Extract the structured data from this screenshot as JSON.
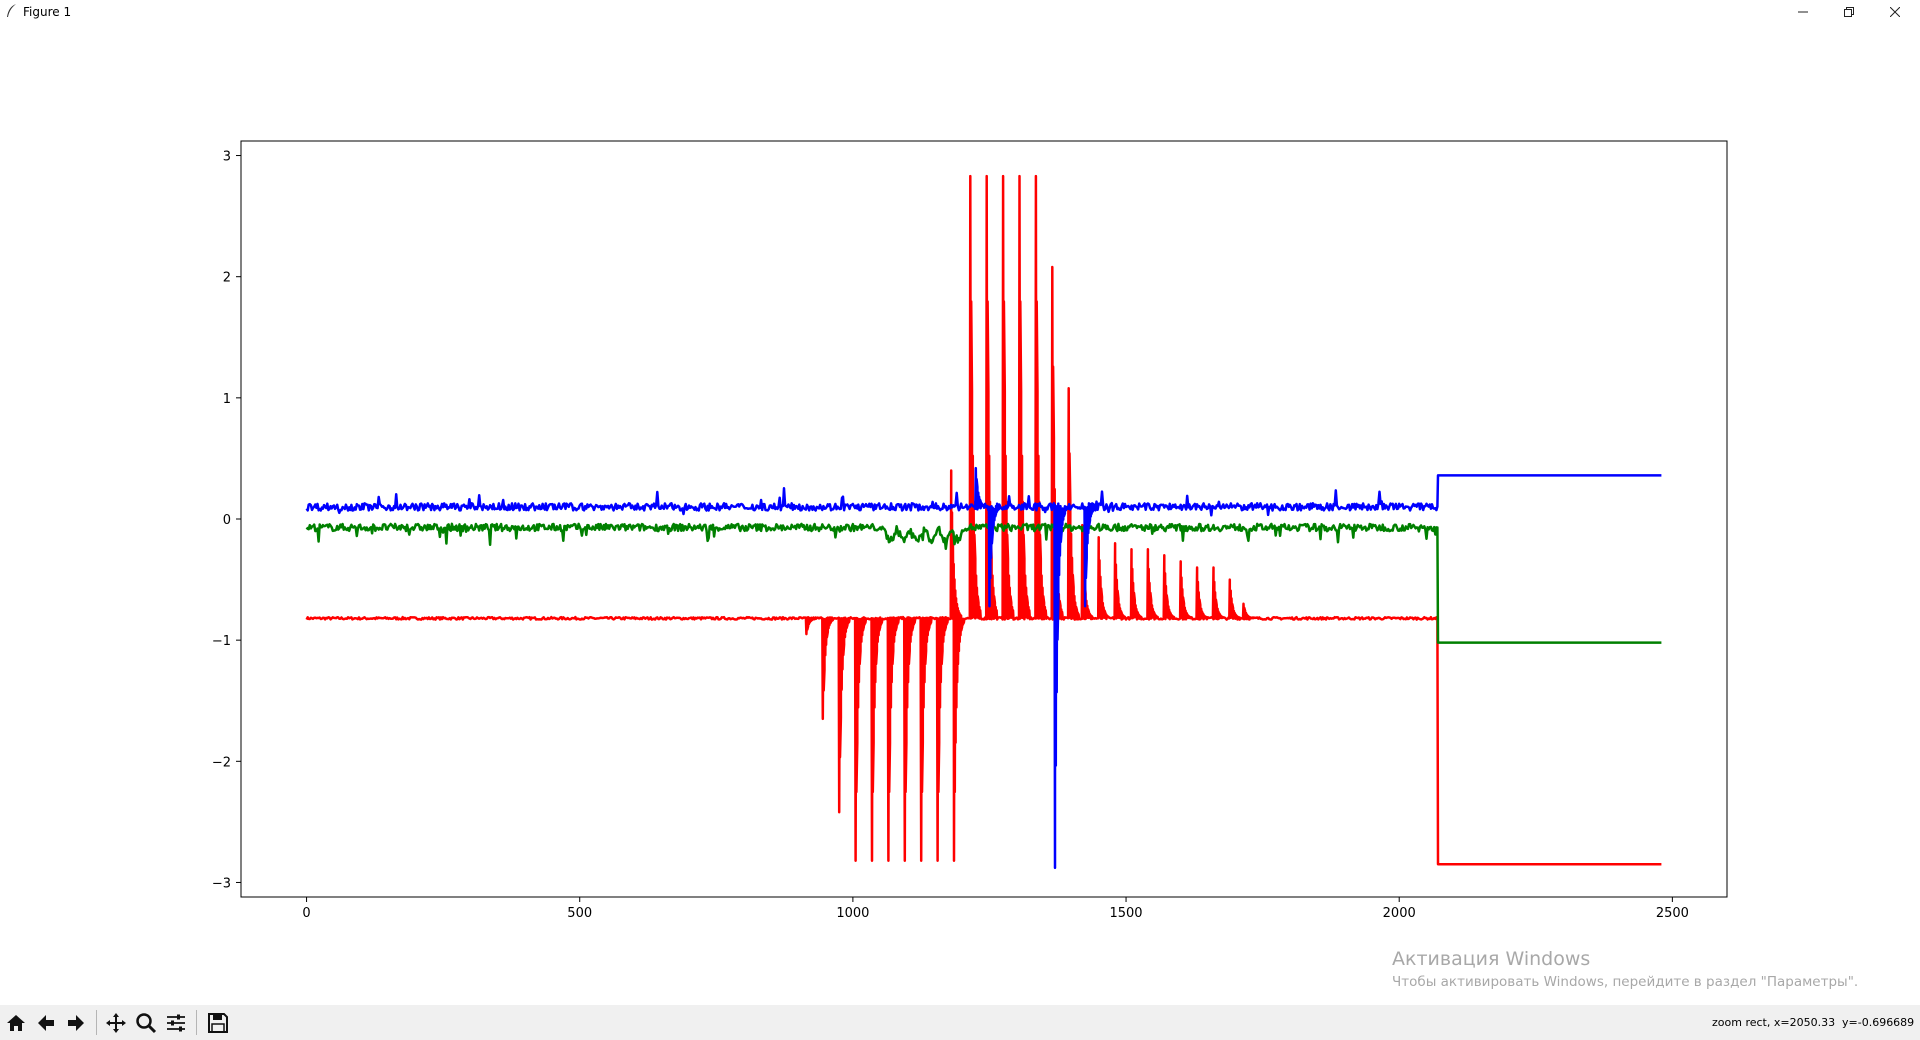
{
  "window": {
    "title": "Figure 1"
  },
  "toolbar": {
    "buttons": [
      "home-icon",
      "back-icon",
      "forward-icon",
      "pan-icon",
      "zoom-icon",
      "configure-subplots-icon",
      "save-icon"
    ]
  },
  "status": {
    "mode_x": "zoom rect, x=2050.33",
    "y": "y=-0.696689"
  },
  "watermark": {
    "title": "Активация Windows",
    "subtitle": "Чтобы активировать Windows, перейдите в раздел \"Параметры\"."
  },
  "chart_data": {
    "type": "line",
    "title": "",
    "xlabel": "",
    "ylabel": "",
    "xlim": [
      -120,
      2600
    ],
    "ylim": [
      -3.12,
      3.12
    ],
    "xticks": [
      0,
      500,
      1000,
      1500,
      2000,
      2500
    ],
    "yticks": [
      3,
      2,
      1,
      0,
      -1,
      -2,
      -3
    ],
    "xtick_labels": [
      "0",
      "500",
      "1000",
      "1500",
      "2000",
      "2500"
    ],
    "ytick_labels": [
      "3",
      "2",
      "1",
      "0",
      "−1",
      "−2",
      "−3"
    ],
    "grid": false,
    "legend": "none",
    "series": [
      {
        "color": "#0000ff",
        "description_values": {
          "baseline": 0.1,
          "noise_amplitude": 0.03,
          "x_start": 0,
          "x_end_signal": 2070,
          "spikes": [
            {
              "x": 1250,
              "y": -0.72
            },
            {
              "x": 1225,
              "y": 0.42
            },
            {
              "x": 1370,
              "y": -2.88
            },
            {
              "x": 1425,
              "y": -0.72
            }
          ],
          "step_value": 0.36,
          "x_end": 2480
        }
      },
      {
        "color": "#008000",
        "description_values": {
          "baseline": -0.07,
          "noise_amplitude": 0.03,
          "x_start": 0,
          "x_end_signal": 2070,
          "step_value": -1.02,
          "x_end": 2480
        }
      },
      {
        "color": "#ff0000",
        "description_values": {
          "baseline": -0.82,
          "noise_amplitude": 0.01,
          "x_start": 0,
          "x_end_signal": 2070,
          "negative_spikes": [
            {
              "x": 915,
              "y": -0.95
            },
            {
              "x": 945,
              "y": -1.65
            },
            {
              "x": 975,
              "y": -2.42
            },
            {
              "x": 1005,
              "y": -2.82
            },
            {
              "x": 1035,
              "y": -2.82
            },
            {
              "x": 1065,
              "y": -2.82
            },
            {
              "x": 1095,
              "y": -2.82
            },
            {
              "x": 1125,
              "y": -2.82
            },
            {
              "x": 1155,
              "y": -2.82
            },
            {
              "x": 1185,
              "y": -2.82
            }
          ],
          "positive_spikes": [
            {
              "x": 1180,
              "y": 0.4
            },
            {
              "x": 1215,
              "y": 2.83
            },
            {
              "x": 1245,
              "y": 2.83
            },
            {
              "x": 1275,
              "y": 2.83
            },
            {
              "x": 1305,
              "y": 2.83
            },
            {
              "x": 1335,
              "y": 2.83
            },
            {
              "x": 1365,
              "y": 2.08
            },
            {
              "x": 1395,
              "y": 1.08
            }
          ],
          "decaying_spikes": [
            {
              "x": 1420,
              "y": -0.05
            },
            {
              "x": 1450,
              "y": -0.15
            },
            {
              "x": 1480,
              "y": -0.2
            },
            {
              "x": 1510,
              "y": -0.25
            },
            {
              "x": 1540,
              "y": -0.25
            },
            {
              "x": 1570,
              "y": -0.3
            },
            {
              "x": 1600,
              "y": -0.35
            },
            {
              "x": 1630,
              "y": -0.4
            },
            {
              "x": 1660,
              "y": -0.4
            },
            {
              "x": 1690,
              "y": -0.5
            },
            {
              "x": 1715,
              "y": -0.7
            }
          ],
          "step_value": -2.85,
          "x_end": 2480
        }
      }
    ]
  }
}
